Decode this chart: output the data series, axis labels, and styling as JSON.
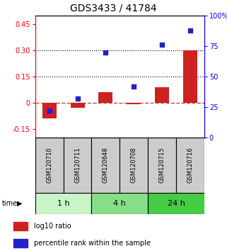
{
  "title": "GDS3433 / 41784",
  "samples": [
    "GSM120710",
    "GSM120711",
    "GSM120648",
    "GSM120708",
    "GSM120715",
    "GSM120716"
  ],
  "log10_ratio": [
    -0.09,
    -0.03,
    0.06,
    -0.01,
    0.09,
    0.3
  ],
  "percentile_rank": [
    22,
    32,
    70,
    42,
    76,
    88
  ],
  "time_groups": [
    {
      "label": "1 h",
      "samples": [
        0,
        1
      ],
      "color": "#c8f5c8"
    },
    {
      "label": "4 h",
      "samples": [
        2,
        3
      ],
      "color": "#88dd88"
    },
    {
      "label": "24 h",
      "samples": [
        4,
        5
      ],
      "color": "#44cc44"
    }
  ],
  "left_ylim": [
    -0.2,
    0.5
  ],
  "right_ylim": [
    0,
    100
  ],
  "left_yticks": [
    -0.15,
    0.0,
    0.15,
    0.3,
    0.45
  ],
  "right_yticks": [
    0,
    25,
    50,
    75,
    100
  ],
  "right_yticklabels": [
    "0",
    "25",
    "50",
    "75",
    "100%"
  ],
  "hlines": [
    0.15,
    0.3
  ],
  "bar_color": "#cc2222",
  "dot_color": "#2222cc",
  "zero_line_color": "#cc4444",
  "background_color": "#ffffff",
  "sample_bg_color": "#cccccc",
  "legend_bar_label": "log10 ratio",
  "legend_dot_label": "percentile rank within the sample",
  "time_label": "time",
  "title_fontsize": 10,
  "tick_fontsize": 7,
  "sample_fontsize": 6,
  "legend_fontsize": 7,
  "time_fontsize": 8
}
